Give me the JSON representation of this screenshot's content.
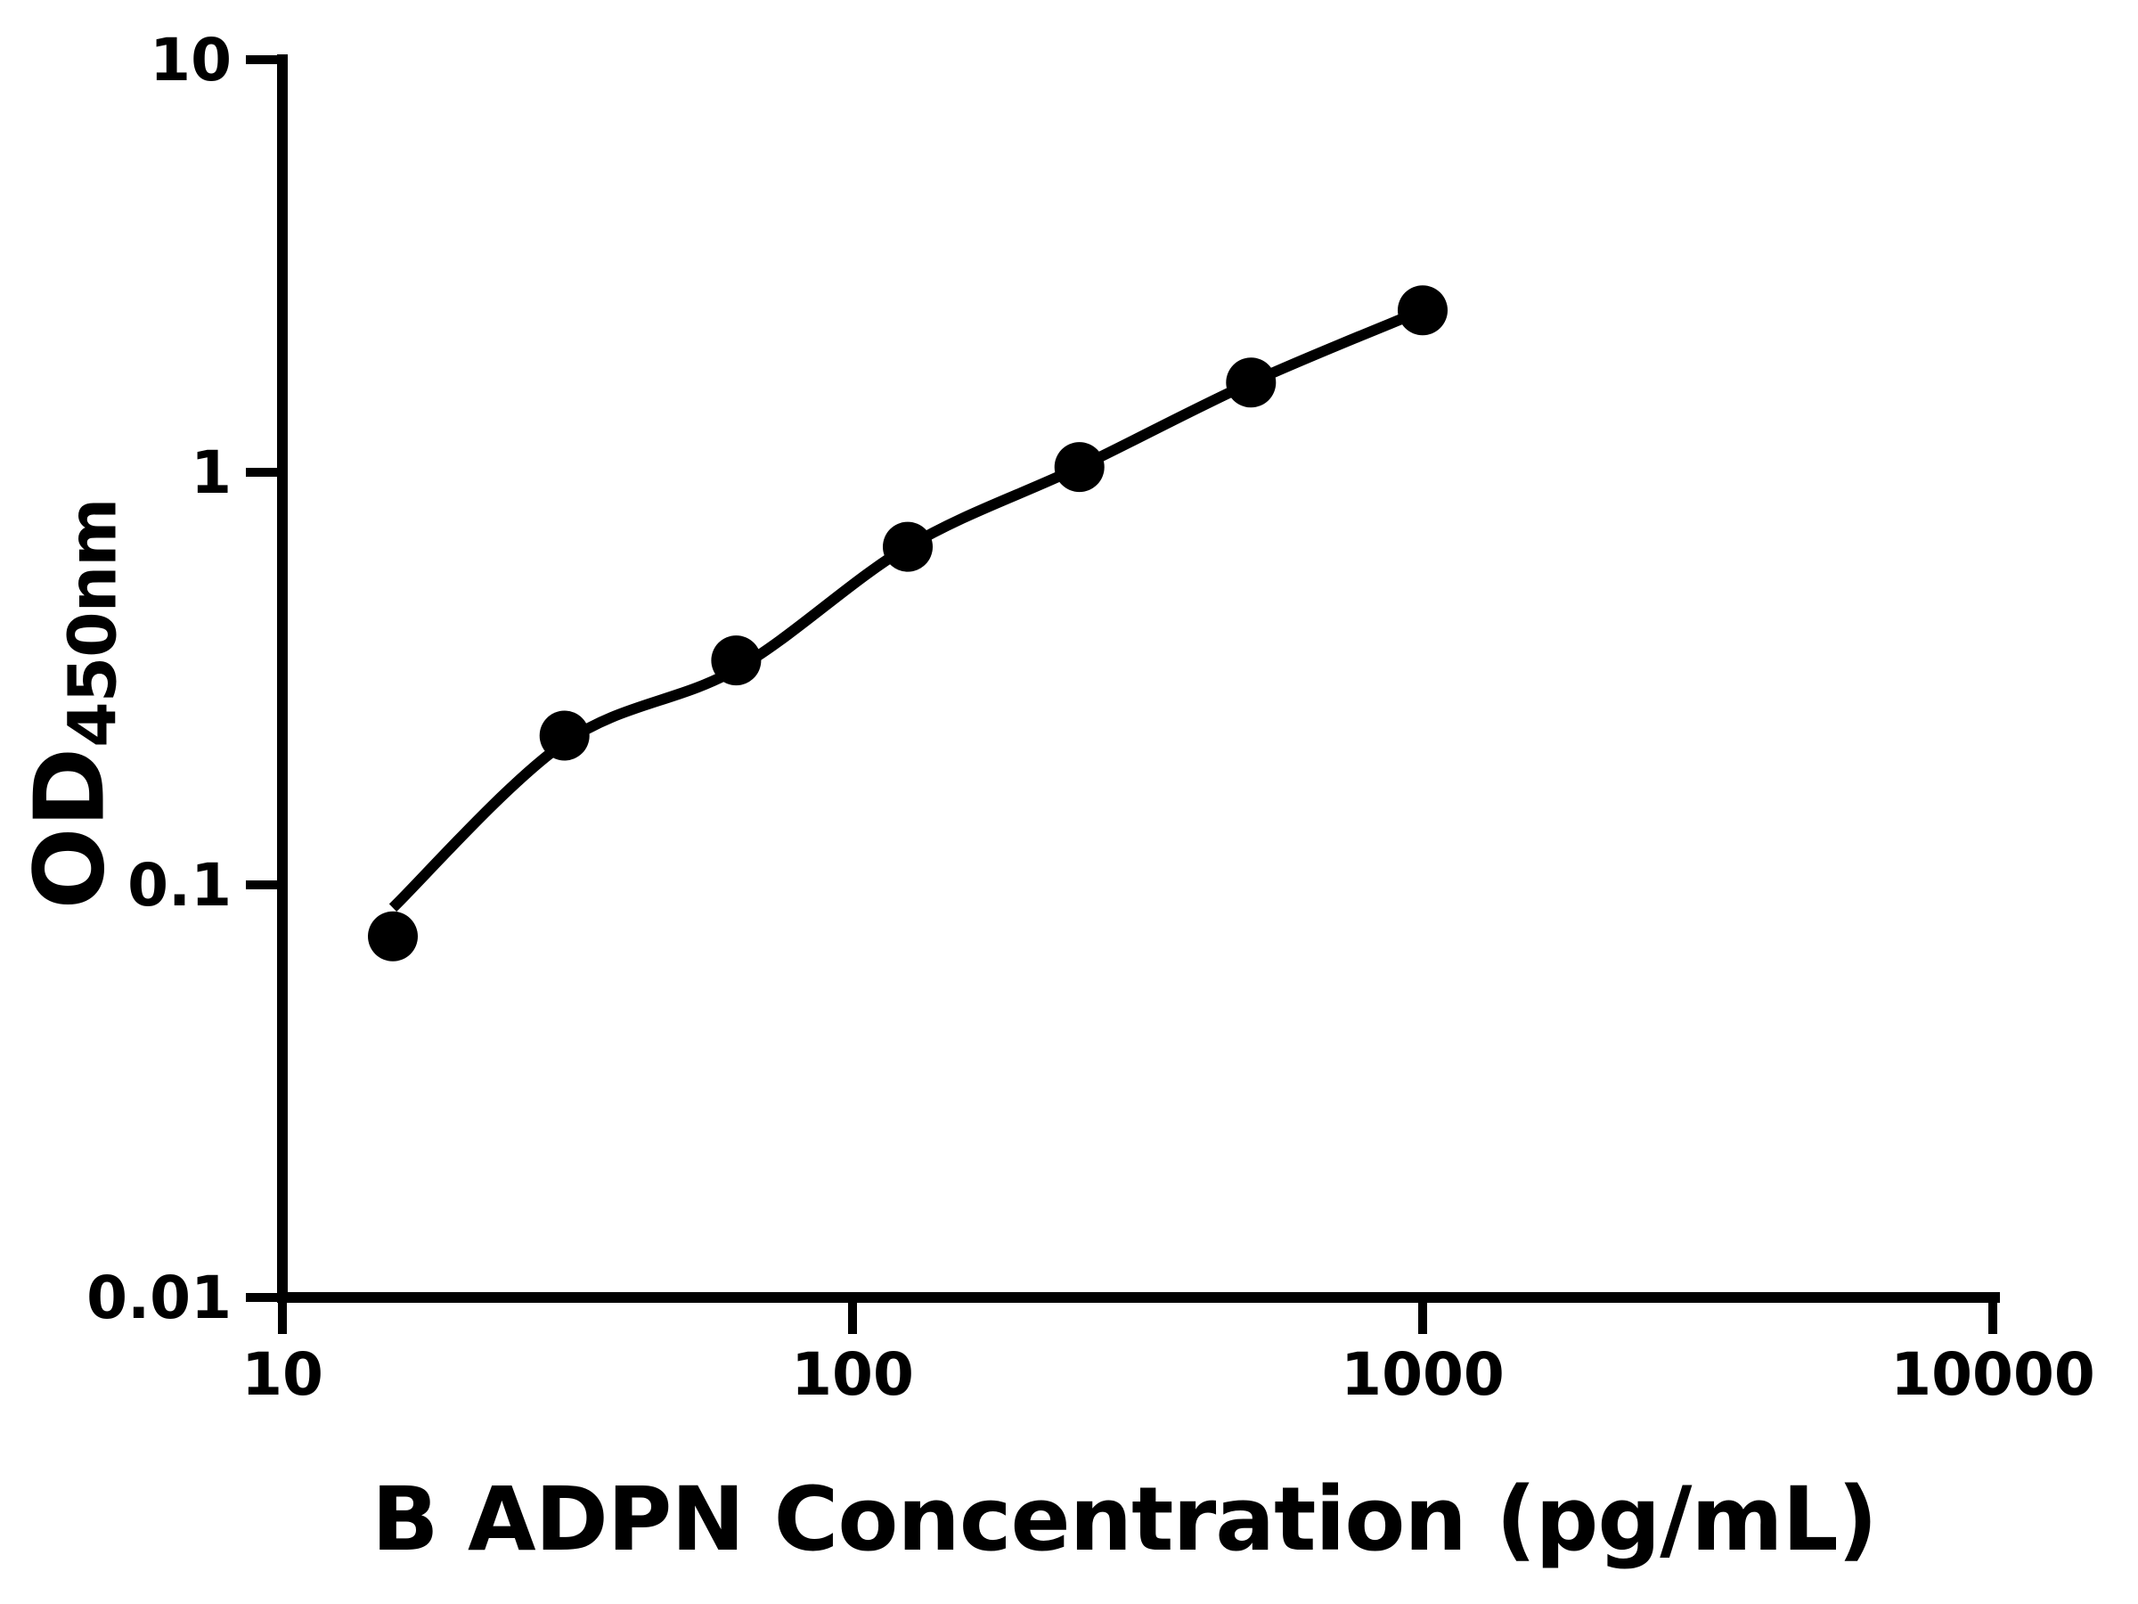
{
  "chart_data": {
    "type": "scatter",
    "title": "",
    "xlabel": "B ADPN Concentration (pg/mL)",
    "ylabel_main": "OD",
    "ylabel_sub": "450nm",
    "x_scale": "log",
    "y_scale": "log",
    "x_range": [
      10,
      10000
    ],
    "y_range": [
      0.01,
      10
    ],
    "grid": "off",
    "legend": "none",
    "x_ticks": [
      {
        "value": 10,
        "label": "10"
      },
      {
        "value": 100,
        "label": "100"
      },
      {
        "value": 1000,
        "label": "1000"
      },
      {
        "value": 10000,
        "label": "10000"
      }
    ],
    "y_ticks": [
      {
        "value": 10,
        "label": "10"
      },
      {
        "value": 1,
        "label": "1"
      },
      {
        "value": 0.1,
        "label": "0.1"
      },
      {
        "value": 0.01,
        "label": "0.01"
      }
    ],
    "series": [
      {
        "name": "standard-points",
        "type": "scatter",
        "marker": "filled-circle",
        "x": [
          15.625,
          31.25,
          62.5,
          125,
          250,
          500,
          1000
        ],
        "y": [
          0.075,
          0.23,
          0.35,
          0.66,
          1.03,
          1.65,
          2.47
        ]
      },
      {
        "name": "fit-curve",
        "type": "line",
        "x": [
          15.625,
          31.25,
          62.5,
          125,
          250,
          500,
          1000
        ],
        "y": [
          0.088,
          0.221,
          0.333,
          0.66,
          1.03,
          1.65,
          2.47
        ]
      }
    ],
    "colors": {
      "foreground": "#000000",
      "background": "#ffffff"
    }
  }
}
